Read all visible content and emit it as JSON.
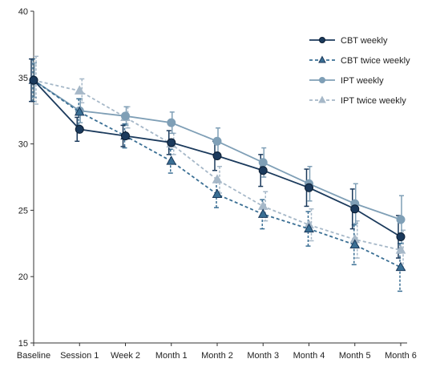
{
  "chart_data": {
    "type": "line",
    "title": "",
    "xlabel": "",
    "ylabel": "",
    "categories": [
      "Baseline",
      "Session 1",
      "Week 2",
      "Month 1",
      "Month 2",
      "Month 3",
      "Month 4",
      "Month 5",
      "Month 6"
    ],
    "ylim": [
      15,
      40
    ],
    "yticks": [
      15,
      20,
      25,
      30,
      35,
      40
    ],
    "grid": false,
    "legend_position": "top-right",
    "series": [
      {
        "name": "CBT weekly",
        "color": "#1b3a5c",
        "marker": "circle",
        "line_style": "solid",
        "values": [
          34.8,
          31.1,
          30.6,
          30.1,
          29.1,
          28.0,
          26.7,
          25.1,
          23.0
        ],
        "error": [
          1.6,
          0.9,
          0.8,
          0.9,
          1.1,
          1.2,
          1.4,
          1.5,
          1.6
        ]
      },
      {
        "name": "CBT twice weekly",
        "color": "#3a6f94",
        "marker": "triangle",
        "line_style": "dashed",
        "values": [
          34.8,
          32.4,
          30.6,
          28.7,
          26.2,
          24.7,
          23.6,
          22.4,
          20.7
        ],
        "error": [
          1.6,
          1.0,
          0.9,
          0.9,
          1.0,
          1.1,
          1.3,
          1.5,
          1.8
        ]
      },
      {
        "name": "IPT weekly",
        "color": "#7f9fb6",
        "marker": "circle",
        "line_style": "solid",
        "values": [
          34.8,
          32.5,
          32.1,
          31.6,
          30.2,
          28.6,
          27.0,
          25.5,
          24.3
        ],
        "error": [
          1.3,
          0.9,
          0.7,
          0.8,
          1.0,
          1.1,
          1.3,
          1.5,
          1.8
        ]
      },
      {
        "name": "IPT twice weekly",
        "color": "#a6b8c8",
        "marker": "triangle",
        "line_style": "dashed",
        "values": [
          34.8,
          34.0,
          32.0,
          30.0,
          27.3,
          25.3,
          23.9,
          22.8,
          22.0
        ],
        "error": [
          1.8,
          0.9,
          0.8,
          0.8,
          1.0,
          1.1,
          1.2,
          1.4,
          1.5
        ]
      }
    ]
  }
}
